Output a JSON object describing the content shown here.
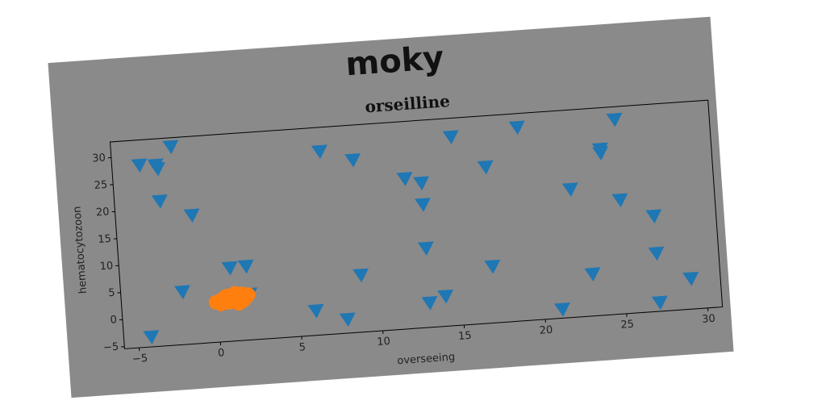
{
  "chart_data": {
    "type": "scatter",
    "suptitle": "moky",
    "title": "orseilline",
    "xlabel": "overseeing",
    "ylabel": "hematocytozoon",
    "xlim": [
      -5.9,
      30.9
    ],
    "ylim": [
      -5.4,
      32.9
    ],
    "xticks": [
      {
        "value": -5,
        "label": "−5"
      },
      0,
      5,
      10,
      15,
      20,
      25,
      30
    ],
    "yticks": [
      {
        "value": -5,
        "label": "−5"
      },
      0,
      5,
      10,
      15,
      20,
      25,
      30
    ],
    "grid": false,
    "series": [
      {
        "color": "#1f77b4",
        "marker": "triangle-down",
        "x": [
          -4.2,
          -3.2,
          -3.1,
          -2.2,
          -3.1,
          -1.2,
          -2.1,
          -4.2,
          0.9,
          1.9,
          2.0,
          6.9,
          8.9,
          8.9,
          6.0,
          7.9,
          12.0,
          13.0,
          13.0,
          13.0,
          15.0,
          17.0,
          17.0,
          13.0,
          14.0,
          19.1,
          22.1,
          21.1,
          23.1,
          25.1,
          24.1,
          24.1,
          25.1,
          27.1,
          27.1,
          27.1,
          29.1
        ],
        "values": [
          28.2,
          28.0,
          27.3,
          31.2,
          21.3,
          18.3,
          4.3,
          -3.6,
          8.1,
          8.2,
          3.0,
          28.4,
          26.4,
          5.1,
          -0.9,
          -2.9,
          22.3,
          21.3,
          17.3,
          9.2,
          29.4,
          23.4,
          5.0,
          -0.9,
          0.1,
          30.3,
          18.2,
          -3.8,
          2.3,
          30.5,
          25.2,
          24.5,
          15.6,
          12.2,
          5.3,
          -3.8,
          0.2
        ]
      },
      {
        "color": "#ff7f0e",
        "marker": "circle",
        "x": [
          -0.1,
          0.3,
          0.6,
          0.9,
          1.2,
          1.5,
          1.8,
          0.2,
          0.7,
          1.1,
          1.6,
          0.5,
          1.3,
          1.9
        ],
        "values": [
          2.0,
          2.5,
          3.0,
          2.2,
          2.8,
          3.2,
          2.6,
          1.6,
          1.8,
          3.4,
          2.0,
          2.9,
          1.5,
          3.0
        ]
      }
    ]
  }
}
